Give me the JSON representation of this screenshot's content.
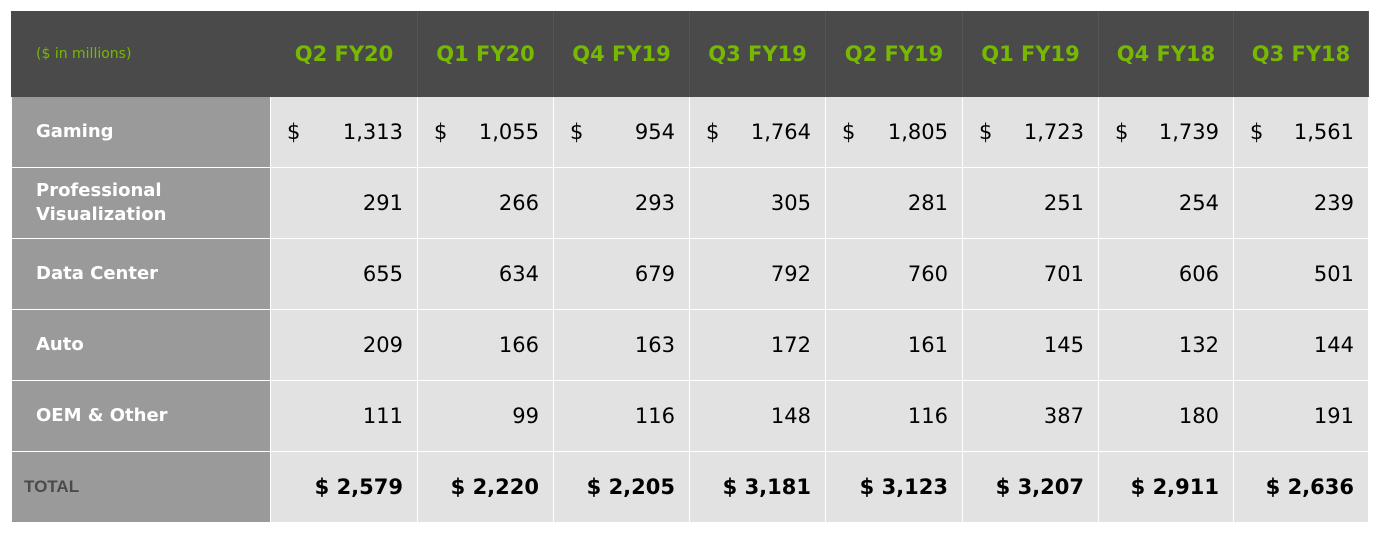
{
  "table": {
    "units_label": "($ in millions)",
    "columns": [
      "Q2 FY20",
      "Q1 FY20",
      "Q4 FY19",
      "Q3 FY19",
      "Q2 FY19",
      "Q1 FY19",
      "Q4 FY18",
      "Q3 FY18"
    ],
    "currency_symbol": "$",
    "rows": [
      {
        "label": "Gaming",
        "values": [
          "1,313",
          "1,055",
          "954",
          "1,764",
          "1,805",
          "1,723",
          "1,739",
          "1,561"
        ],
        "currency": true
      },
      {
        "label": "Professional Visualization",
        "values": [
          "291",
          "266",
          "293",
          "305",
          "281",
          "251",
          "254",
          "239"
        ],
        "currency": false
      },
      {
        "label": "Data Center",
        "values": [
          "655",
          "634",
          "679",
          "792",
          "760",
          "701",
          "606",
          "501"
        ],
        "currency": false
      },
      {
        "label": "Auto",
        "values": [
          "209",
          "166",
          "163",
          "172",
          "161",
          "145",
          "132",
          "144"
        ],
        "currency": false
      },
      {
        "label": "OEM & Other",
        "values": [
          "111",
          "99",
          "116",
          "148",
          "116",
          "387",
          "180",
          "191"
        ],
        "currency": false
      }
    ],
    "total": {
      "label": "TOTAL",
      "values": [
        "$ 2,579",
        "$ 2,220",
        "$ 2,205",
        "$ 3,181",
        "$ 3,123",
        "$ 3,207",
        "$ 2,911",
        "$ 2,636"
      ]
    }
  },
  "colors": {
    "header_bg": "#4a4a4a",
    "header_text": "#76b900",
    "label_bg": "#9a9a9a",
    "cell_bg": "#e2e2e2"
  }
}
